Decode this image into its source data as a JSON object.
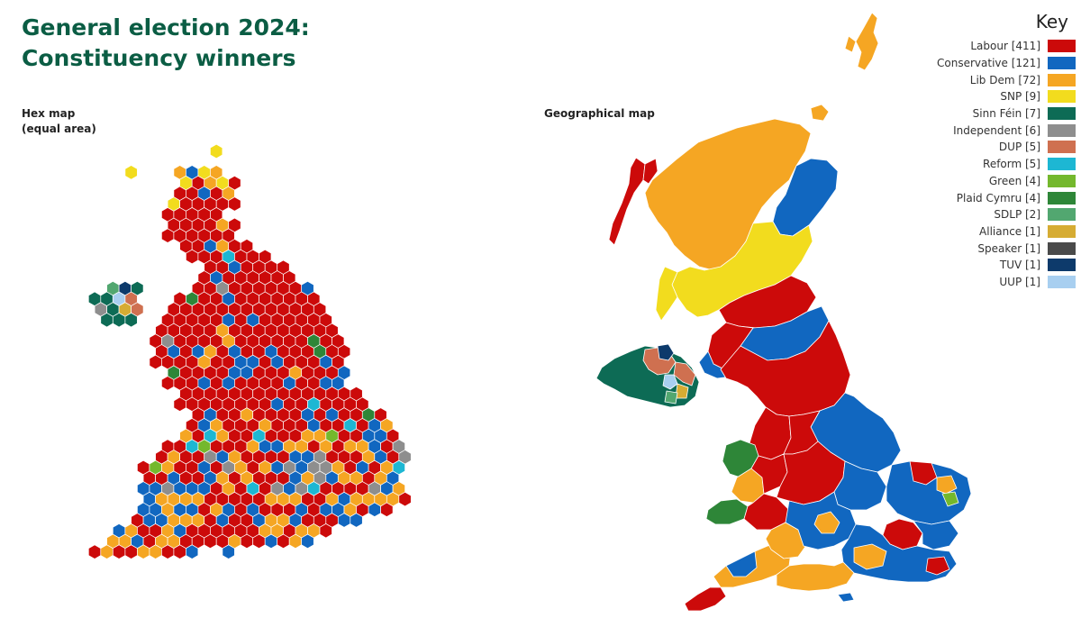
{
  "title": {
    "line1": "General election 2024:",
    "line2": "Constituency winners"
  },
  "hex_subtitle": {
    "line1": "Hex map",
    "line2": "(equal area)"
  },
  "geo_subtitle": "Geographical map",
  "key_title": "Key",
  "legend": [
    {
      "id": "lab",
      "label": "Labour [411]",
      "color": "#cc0a0a"
    },
    {
      "id": "con",
      "label": "Conservative [121]",
      "color": "#1167c0"
    },
    {
      "id": "ld",
      "label": "Lib Dem [72]",
      "color": "#f5a623"
    },
    {
      "id": "snp",
      "label": "SNP [9]",
      "color": "#f2dc1e"
    },
    {
      "id": "sf",
      "label": "Sinn Féin [7]",
      "color": "#0d6b55"
    },
    {
      "id": "ind",
      "label": "Independent [6]",
      "color": "#8e8e8e"
    },
    {
      "id": "dup",
      "label": "DUP [5]",
      "color": "#cf7050"
    },
    {
      "id": "ref",
      "label": "Reform [5]",
      "color": "#1db7d3"
    },
    {
      "id": "grn",
      "label": "Green [4]",
      "color": "#74b82d"
    },
    {
      "id": "pc",
      "label": "Plaid Cymru [4]",
      "color": "#2e8638"
    },
    {
      "id": "sdlp",
      "label": "SDLP [2]",
      "color": "#52a770"
    },
    {
      "id": "all",
      "label": "Alliance [1]",
      "color": "#d6ac33"
    },
    {
      "id": "spk",
      "label": "Speaker [1]",
      "color": "#4a4a4a"
    },
    {
      "id": "tuv",
      "label": "TUV [1]",
      "color": "#0d3a6b"
    },
    {
      "id": "uup",
      "label": "UUP [1]",
      "color": "#a8cff0"
    }
  ]
}
